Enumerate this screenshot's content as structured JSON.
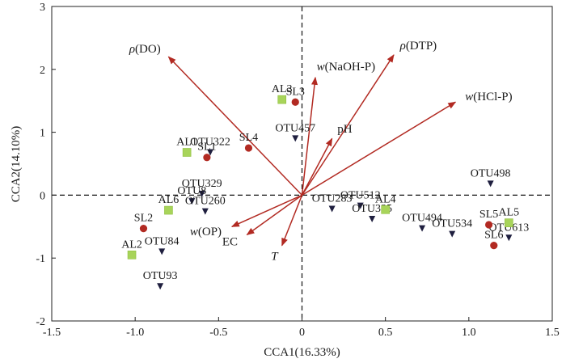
{
  "chart_data": {
    "type": "scatter",
    "subtype": "CCA biplot",
    "xlabel": "CCA1(16.33%)",
    "ylabel": "CCA2(14.10%)",
    "xlim": [
      -1.5,
      1.5
    ],
    "ylim": [
      -2,
      3
    ],
    "xticks": [
      "-1.5",
      "-1.0",
      "-0.5",
      "0",
      "0.5",
      "1.0",
      "1.5"
    ],
    "yticks": [
      "-2",
      "-1",
      "0",
      "1",
      "2",
      "3"
    ],
    "reference_lines": "dashed lines at x=0 and y=0",
    "colors": {
      "arrow": "#b22a22",
      "otu": "#1f1f3f",
      "sediment": "#b22a22",
      "algae": "#a8d45a"
    },
    "environment_arrows": [
      {
        "prefix": "ρ",
        "var": "DO",
        "x": -0.8,
        "y": 2.2
      },
      {
        "prefix": "w",
        "var": "NaOH-P",
        "x": 0.08,
        "y": 1.87
      },
      {
        "prefix": "ρ",
        "var": "DTP",
        "x": 0.55,
        "y": 2.23
      },
      {
        "prefix": "w",
        "var": "HCl-P",
        "x": 0.92,
        "y": 1.48
      },
      {
        "prefix": "",
        "var": "pH",
        "x": 0.18,
        "y": 0.9
      },
      {
        "prefix": "w",
        "var": "OP",
        "x": -0.42,
        "y": -0.5
      },
      {
        "prefix": "",
        "var": "EC",
        "x": -0.33,
        "y": -0.63
      },
      {
        "prefix": "",
        "var": "T",
        "x": -0.12,
        "y": -0.8
      }
    ],
    "series": [
      {
        "name": "OTU",
        "marker": "triangle-down",
        "points": [
          {
            "label": "OTU322",
            "x": -0.55,
            "y": 0.68
          },
          {
            "label": "OTU457",
            "x": -0.04,
            "y": 0.9
          },
          {
            "label": "OTU329",
            "x": -0.6,
            "y": 0.02
          },
          {
            "label": "OTU8",
            "x": -0.66,
            "y": -0.1
          },
          {
            "label": "OTU260",
            "x": -0.58,
            "y": -0.26
          },
          {
            "label": "OTU84",
            "x": -0.84,
            "y": -0.9
          },
          {
            "label": "OTU93",
            "x": -0.85,
            "y": -1.45
          },
          {
            "label": "OTU283",
            "x": 0.18,
            "y": -0.22
          },
          {
            "label": "OTU512",
            "x": 0.35,
            "y": -0.17
          },
          {
            "label": "OTU335",
            "x": 0.42,
            "y": -0.38
          },
          {
            "label": "OTU494",
            "x": 0.72,
            "y": -0.53
          },
          {
            "label": "OTU534",
            "x": 0.9,
            "y": -0.62
          },
          {
            "label": "OTU498",
            "x": 1.13,
            "y": 0.18
          },
          {
            "label": "OTU613",
            "x": 1.24,
            "y": -0.68
          }
        ]
      },
      {
        "name": "SL",
        "marker": "circle",
        "points": [
          {
            "label": "SL1",
            "x": -0.57,
            "y": 0.6
          },
          {
            "label": "SL2",
            "x": -0.95,
            "y": -0.53
          },
          {
            "label": "SL3",
            "x": -0.04,
            "y": 1.48
          },
          {
            "label": "SL4",
            "x": -0.32,
            "y": 0.75
          },
          {
            "label": "SL5",
            "x": 1.12,
            "y": -0.47
          },
          {
            "label": "SL6",
            "x": 1.15,
            "y": -0.8
          }
        ]
      },
      {
        "name": "AL",
        "marker": "square",
        "points": [
          {
            "label": "AL1",
            "x": -0.69,
            "y": 0.68
          },
          {
            "label": "AL2",
            "x": -1.02,
            "y": -0.95
          },
          {
            "label": "AL3",
            "x": -0.12,
            "y": 1.52
          },
          {
            "label": "AL4",
            "x": 0.5,
            "y": -0.23
          },
          {
            "label": "AL5",
            "x": 1.24,
            "y": -0.44
          },
          {
            "label": "AL6",
            "x": -0.8,
            "y": -0.24
          }
        ]
      }
    ]
  }
}
